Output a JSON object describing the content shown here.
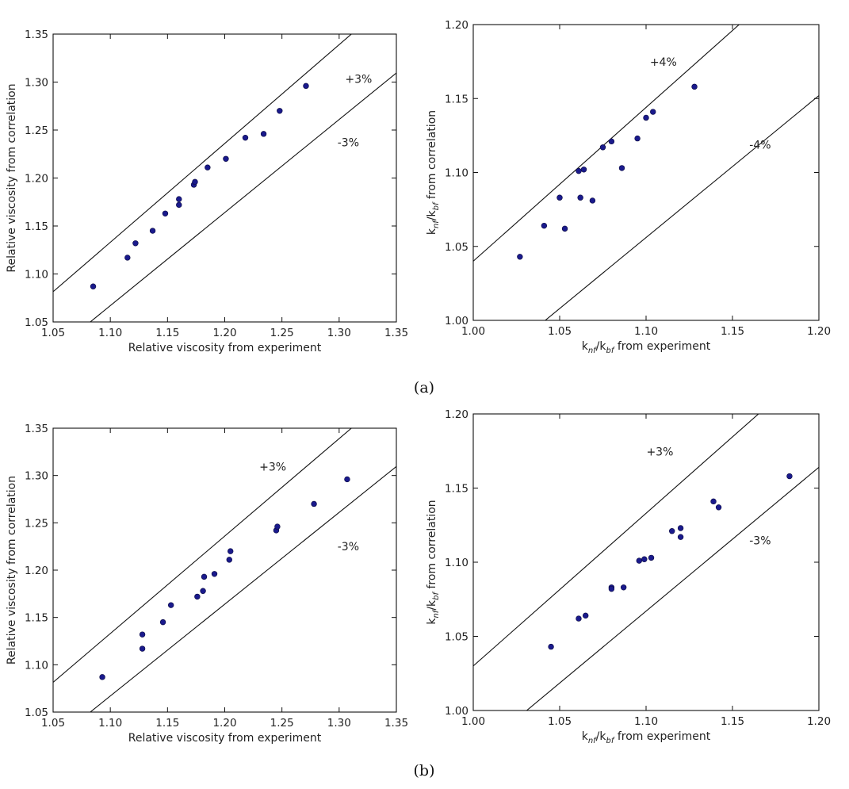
{
  "panel_labels": [
    "(a)",
    "(b)"
  ],
  "chart_data": [
    {
      "type": "scatter",
      "xlabel": "Relative viscosity from experiment",
      "ylabel": "Relative viscosity from correlation",
      "xlim": [
        1.05,
        1.35
      ],
      "ylim": [
        1.05,
        1.35
      ],
      "xticks": [
        "1.05",
        "1.10",
        "1.15",
        "1.20",
        "1.25",
        "1.30",
        "1.35"
      ],
      "yticks": [
        "1.05",
        "1.10",
        "1.15",
        "1.20",
        "1.25",
        "1.30",
        "1.35"
      ],
      "band_labels": [
        "+3%",
        "-3%"
      ],
      "band_factor": 0.03,
      "marker_color": "#1a1a8c",
      "points": [
        [
          1.085,
          1.087
        ],
        [
          1.115,
          1.117
        ],
        [
          1.122,
          1.132
        ],
        [
          1.137,
          1.145
        ],
        [
          1.148,
          1.163
        ],
        [
          1.16,
          1.178
        ],
        [
          1.16,
          1.172
        ],
        [
          1.173,
          1.193
        ],
        [
          1.174,
          1.196
        ],
        [
          1.185,
          1.211
        ],
        [
          1.201,
          1.22
        ],
        [
          1.218,
          1.242
        ],
        [
          1.234,
          1.246
        ],
        [
          1.248,
          1.27
        ],
        [
          1.271,
          1.296
        ]
      ]
    },
    {
      "type": "scatter",
      "xlabel": "knf/kbf from experiment",
      "ylabel": "knf/kbf from correlation",
      "xlim": [
        1.0,
        1.2
      ],
      "ylim": [
        1.0,
        1.2
      ],
      "xticks": [
        "1.00",
        "1.05",
        "1.10",
        "1.15",
        "1.20"
      ],
      "yticks": [
        "1.00",
        "1.05",
        "1.10",
        "1.15",
        "1.20"
      ],
      "band_labels": [
        "+4%",
        "-4%"
      ],
      "band_factor": 0.04,
      "marker_color": "#1a1a8c",
      "points": [
        [
          1.027,
          1.043
        ],
        [
          1.041,
          1.064
        ],
        [
          1.05,
          1.083
        ],
        [
          1.053,
          1.062
        ],
        [
          1.061,
          1.101
        ],
        [
          1.062,
          1.083
        ],
        [
          1.064,
          1.102
        ],
        [
          1.069,
          1.081
        ],
        [
          1.075,
          1.117
        ],
        [
          1.08,
          1.121
        ],
        [
          1.086,
          1.103
        ],
        [
          1.095,
          1.123
        ],
        [
          1.1,
          1.137
        ],
        [
          1.104,
          1.141
        ],
        [
          1.128,
          1.158
        ]
      ]
    },
    {
      "type": "scatter",
      "xlabel": "Relative viscosity from experiment",
      "ylabel": "Relative viscosity from correlation",
      "xlim": [
        1.05,
        1.35
      ],
      "ylim": [
        1.05,
        1.35
      ],
      "xticks": [
        "1.05",
        "1.10",
        "1.15",
        "1.20",
        "1.25",
        "1.30",
        "1.35"
      ],
      "yticks": [
        "1.05",
        "1.10",
        "1.15",
        "1.20",
        "1.25",
        "1.30",
        "1.35"
      ],
      "band_labels": [
        "+3%",
        "-3%"
      ],
      "band_factor": 0.03,
      "marker_color": "#1a1a8c",
      "points": [
        [
          1.093,
          1.087
        ],
        [
          1.128,
          1.132
        ],
        [
          1.128,
          1.117
        ],
        [
          1.146,
          1.145
        ],
        [
          1.153,
          1.163
        ],
        [
          1.176,
          1.172
        ],
        [
          1.181,
          1.178
        ],
        [
          1.182,
          1.193
        ],
        [
          1.191,
          1.196
        ],
        [
          1.204,
          1.211
        ],
        [
          1.205,
          1.22
        ],
        [
          1.245,
          1.242
        ],
        [
          1.246,
          1.246
        ],
        [
          1.278,
          1.27
        ],
        [
          1.307,
          1.296
        ]
      ]
    },
    {
      "type": "scatter",
      "xlabel": "knf/kbf from experiment",
      "ylabel": "knf/kbf from correlation",
      "xlim": [
        1.0,
        1.2
      ],
      "ylim": [
        1.0,
        1.2
      ],
      "xticks": [
        "1.00",
        "1.05",
        "1.10",
        "1.15",
        "1.20"
      ],
      "yticks": [
        "1.00",
        "1.05",
        "1.10",
        "1.15",
        "1.20"
      ],
      "band_labels": [
        "+3%",
        "-3%"
      ],
      "band_factor": 0.03,
      "marker_color": "#1a1a8c",
      "points": [
        [
          1.045,
          1.043
        ],
        [
          1.061,
          1.062
        ],
        [
          1.065,
          1.064
        ],
        [
          1.08,
          1.083
        ],
        [
          1.08,
          1.082
        ],
        [
          1.087,
          1.083
        ],
        [
          1.096,
          1.101
        ],
        [
          1.099,
          1.102
        ],
        [
          1.103,
          1.103
        ],
        [
          1.115,
          1.121
        ],
        [
          1.12,
          1.123
        ],
        [
          1.12,
          1.117
        ],
        [
          1.139,
          1.141
        ],
        [
          1.142,
          1.137
        ],
        [
          1.183,
          1.158
        ]
      ]
    }
  ]
}
